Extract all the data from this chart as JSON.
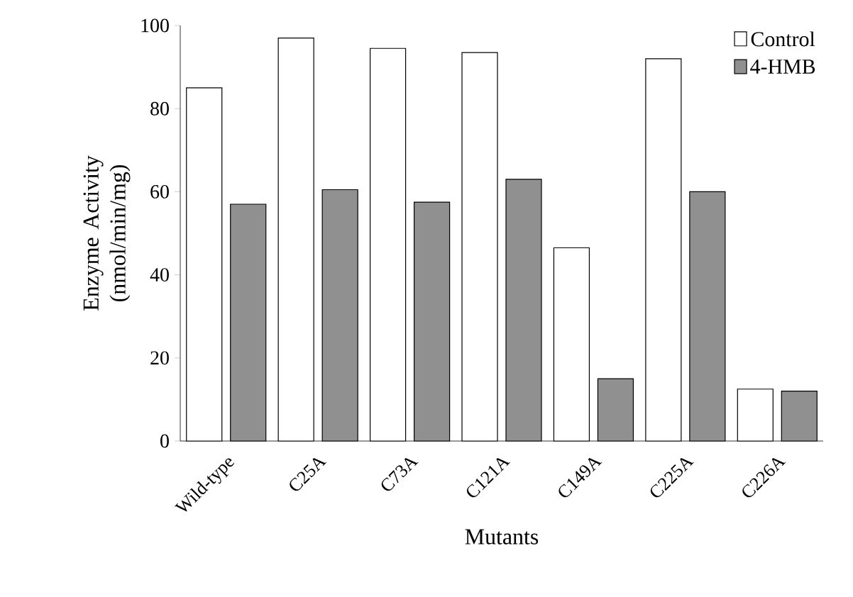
{
  "chart_data": {
    "type": "bar",
    "xlabel": "Mutants",
    "ylabel": "Enzyme Activity (nmol/min/mg)",
    "categories": [
      "Wild-type",
      "C25A",
      "C73A",
      "C121A",
      "C149A",
      "C225A",
      "C226A"
    ],
    "series": [
      {
        "name": "Control",
        "color": "#ffffff",
        "values": [
          85,
          97,
          94.5,
          93.5,
          46.5,
          92,
          12.5
        ]
      },
      {
        "name": "4-HMB",
        "color": "#909090",
        "values": [
          57,
          60.5,
          57.5,
          63,
          15,
          60,
          12
        ]
      }
    ],
    "ylim": [
      0,
      100
    ],
    "yticks": [
      0,
      20,
      40,
      60,
      80,
      100
    ],
    "grid": false,
    "legend": "top right"
  }
}
